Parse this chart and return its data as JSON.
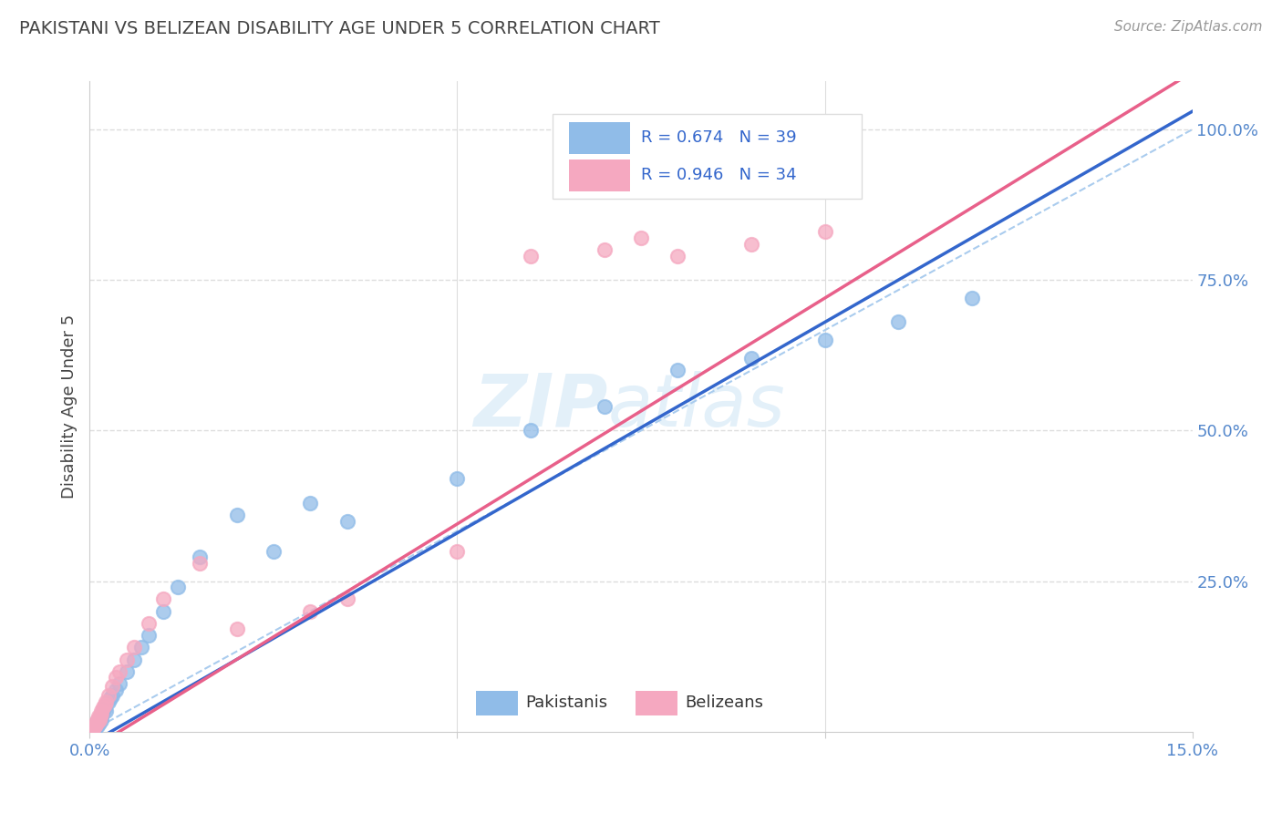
{
  "title": "PAKISTANI VS BELIZEAN DISABILITY AGE UNDER 5 CORRELATION CHART",
  "source": "Source: ZipAtlas.com",
  "ylabel_label": "Disability Age Under 5",
  "xlim": [
    0.0,
    15.0
  ],
  "ylim": [
    0.0,
    108.0
  ],
  "pakistani_r": "0.674",
  "pakistani_n": "39",
  "belizean_r": "0.946",
  "belizean_n": "34",
  "legend_bottom_pk": "Pakistanis",
  "legend_bottom_bz": "Belizeans",
  "pakistani_color": "#90bce8",
  "belizean_color": "#f5a8c0",
  "pakistani_line_color": "#3366cc",
  "belizean_line_color": "#e8608a",
  "ref_line_color": "#aaccee",
  "watermark_zip": "ZIP",
  "watermark_atlas": "atlas",
  "background_color": "#ffffff",
  "grid_color": "#dddddd",
  "pakistani_x": [
    0.05,
    0.07,
    0.08,
    0.09,
    0.1,
    0.11,
    0.12,
    0.13,
    0.14,
    0.15,
    0.16,
    0.17,
    0.18,
    0.2,
    0.22,
    0.25,
    0.28,
    0.3,
    0.35,
    0.4,
    0.5,
    0.6,
    0.7,
    0.8,
    1.0,
    1.2,
    1.5,
    2.0,
    2.5,
    3.0,
    3.5,
    5.0,
    6.0,
    7.0,
    8.0,
    9.0,
    10.0,
    11.0,
    12.0
  ],
  "pakistani_y": [
    0.5,
    1.0,
    0.8,
    1.2,
    1.5,
    1.0,
    2.0,
    1.5,
    2.5,
    2.0,
    2.5,
    3.0,
    3.5,
    4.0,
    3.5,
    5.0,
    5.5,
    6.0,
    7.0,
    8.0,
    10.0,
    12.0,
    14.0,
    16.0,
    20.0,
    24.0,
    29.0,
    36.0,
    30.0,
    38.0,
    35.0,
    42.0,
    50.0,
    54.0,
    60.0,
    62.0,
    65.0,
    68.0,
    72.0
  ],
  "belizean_x": [
    0.04,
    0.06,
    0.07,
    0.08,
    0.09,
    0.1,
    0.11,
    0.12,
    0.13,
    0.14,
    0.15,
    0.16,
    0.18,
    0.2,
    0.22,
    0.25,
    0.3,
    0.35,
    0.4,
    0.5,
    0.6,
    0.8,
    1.0,
    1.5,
    2.0,
    3.0,
    3.5,
    5.0,
    6.0,
    7.0,
    7.5,
    8.0,
    9.0,
    10.0
  ],
  "belizean_y": [
    0.5,
    0.8,
    1.0,
    1.2,
    1.5,
    1.8,
    2.0,
    2.5,
    2.0,
    2.5,
    3.0,
    3.5,
    4.0,
    4.5,
    5.0,
    6.0,
    7.5,
    9.0,
    10.0,
    12.0,
    14.0,
    18.0,
    22.0,
    28.0,
    17.0,
    20.0,
    22.0,
    30.0,
    79.0,
    80.0,
    82.0,
    79.0,
    81.0,
    83.0
  ]
}
